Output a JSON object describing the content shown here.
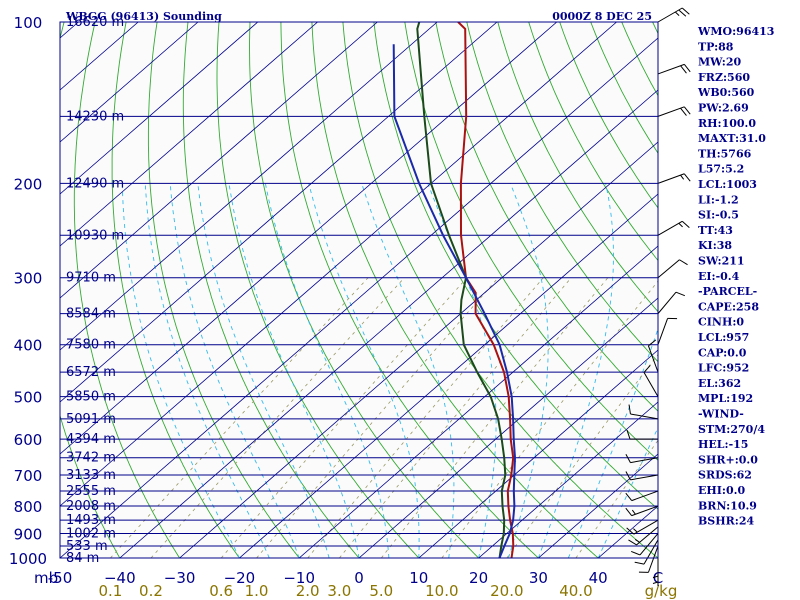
{
  "header": {
    "title": "WBGG (96413) Sounding",
    "datetime": "0000Z  8 DEC 25"
  },
  "colors": {
    "background": "#ffffff",
    "plot_bg": "#fbfbfb",
    "isobar": "#00008b",
    "isotherm": "#00008b",
    "dry_adiabat": "#33aa33",
    "moist_adiabat": "#33bbee",
    "mixing_ratio": "#999966",
    "temperature": "#aa1111",
    "dewpoint": "#1c4a1c",
    "parcel": "#1a2aa8",
    "wind_barb": "#000000",
    "stats_text": "#00008b"
  },
  "stats": [
    "WMO:96413",
    "TP:88",
    "MW:20",
    "FRZ:560",
    "WB0:560",
    "PW:2.69",
    "RH:100.0",
    "MAXT:31.0",
    "TH:5766",
    "L57:5.2",
    "LCL:1003",
    "LI:-1.2",
    "SI:-0.5",
    "TT:43",
    "KI:38",
    "SW:211",
    "EI:-0.4",
    "-PARCEL-",
    "CAPE:258",
    "CINH:0",
    "LCL:957",
    "CAP:0.0",
    "LFC:952",
    "EL:362",
    "MPL:192",
    "-WIND-",
    "STM:270/4",
    "HEL:-15",
    "SHR+:0.0",
    "SRDS:62",
    "EHI:0.0",
    "BRN:10.9",
    "BSHR:24"
  ],
  "chart_data": {
    "type": "line",
    "title": "WBGG (96413) Sounding",
    "subtitle": "0000Z  8 DEC 25",
    "xlabel": "C",
    "ylabel": "mb",
    "pressure_axis": {
      "scale": "log",
      "ylim": [
        1000,
        100
      ],
      "reversed": true
    },
    "x_temperature_range": [
      -50,
      50
    ],
    "pressure_ticks": [
      {
        "p": 100,
        "label": "100"
      },
      {
        "p": 200,
        "label": "200"
      },
      {
        "p": 300,
        "label": "300"
      },
      {
        "p": 400,
        "label": "400"
      },
      {
        "p": 500,
        "label": "500"
      },
      {
        "p": 600,
        "label": "600"
      },
      {
        "p": 700,
        "label": "700"
      },
      {
        "p": 800,
        "label": "800"
      },
      {
        "p": 900,
        "label": "900"
      },
      {
        "p": 1000,
        "label": "1000"
      }
    ],
    "height_labels": [
      {
        "p": 100,
        "label": "16620 m"
      },
      {
        "p": 150,
        "label": "14230 m"
      },
      {
        "p": 200,
        "label": "12490 m"
      },
      {
        "p": 250,
        "label": "10930 m"
      },
      {
        "p": 300,
        "label": "9710 m"
      },
      {
        "p": 350,
        "label": "8584 m"
      },
      {
        "p": 400,
        "label": "7580 m"
      },
      {
        "p": 450,
        "label": "6572 m"
      },
      {
        "p": 500,
        "label": "5850 m"
      },
      {
        "p": 550,
        "label": "5091 m"
      },
      {
        "p": 600,
        "label": "4394 m"
      },
      {
        "p": 650,
        "label": "3742 m"
      },
      {
        "p": 700,
        "label": "3133 m"
      },
      {
        "p": 750,
        "label": "2555 m"
      },
      {
        "p": 800,
        "label": "2008 m"
      },
      {
        "p": 850,
        "label": "1493 m"
      },
      {
        "p": 900,
        "label": "1002 m"
      },
      {
        "p": 950,
        "label": "533 m"
      },
      {
        "p": 1000,
        "label": "84 m"
      }
    ],
    "temperature_ticks": [
      -50,
      -40,
      -30,
      -20,
      -10,
      0,
      10,
      20,
      30,
      40,
      50
    ],
    "temperature_tick_labels": [
      "-50",
      "−40",
      "−30",
      "−20",
      "−10",
      "0",
      "10",
      "20",
      "30",
      "40"
    ],
    "temperature_unit_label": "C",
    "pressure_unit_label": "mb",
    "mixing_ratio_ticks": [
      {
        "w": 0.1,
        "label": "0.1"
      },
      {
        "w": 0.2,
        "label": "0.2"
      },
      {
        "w": 0.6,
        "label": "0.6"
      },
      {
        "w": 1.0,
        "label": "1.0"
      },
      {
        "w": 2.0,
        "label": "2.0"
      },
      {
        "w": 3.0,
        "label": "3.0"
      },
      {
        "w": 5.0,
        "label": "5.0"
      },
      {
        "w": 10.0,
        "label": "10.0"
      },
      {
        "w": 20.0,
        "label": "20.0"
      },
      {
        "w": 40.0,
        "label": "40.0"
      }
    ],
    "mixing_ratio_unit": "g/kg",
    "series": [
      {
        "name": "",
        "kind": "temperature",
        "p": [
          1000,
          950,
          900,
          850,
          800,
          750,
          700,
          650,
          600,
          550,
          500,
          450,
          400,
          350,
          320,
          300,
          250,
          200,
          150,
          103,
          100
        ],
        "t": [
          25.5,
          23.5,
          21.0,
          18.0,
          15.0,
          12.0,
          9.5,
          6.5,
          2.5,
          -1.5,
          -6.0,
          -11.5,
          -18.5,
          -27.5,
          -31.5,
          -36.0,
          -45.0,
          -55.0,
          -67.0,
          -84.0,
          -86.5
        ]
      },
      {
        "name": "",
        "kind": "dewpoint",
        "p": [
          1000,
          950,
          900,
          850,
          800,
          750,
          700,
          650,
          600,
          550,
          500,
          450,
          400,
          350,
          330,
          300,
          250,
          200,
          150,
          103,
          100
        ],
        "t": [
          23.5,
          21.5,
          19.5,
          17.0,
          14.0,
          11.0,
          8.5,
          5.0,
          1.0,
          -3.5,
          -9.0,
          -16.0,
          -23.5,
          -30.0,
          -32.5,
          -36.0,
          -47.0,
          -60.0,
          -74.0,
          -92.0,
          -93.0
        ]
      },
      {
        "name": "",
        "kind": "parcel",
        "p": [
          1000,
          950,
          900,
          850,
          800,
          750,
          700,
          650,
          600,
          550,
          500,
          450,
          400,
          350,
          300,
          250,
          200,
          150,
          110
        ],
        "t": [
          23.5,
          22.0,
          20.5,
          18.5,
          16.0,
          13.0,
          10.0,
          6.8,
          3.0,
          -1.0,
          -5.5,
          -11.0,
          -17.5,
          -26.0,
          -36.0,
          -48.0,
          -62.0,
          -79.0,
          -93.0
        ]
      }
    ],
    "winds": [
      {
        "p": 1000,
        "dir": 180,
        "spd": 5
      },
      {
        "p": 975,
        "dir": 180,
        "spd": 5
      },
      {
        "p": 950,
        "dir": 200,
        "spd": 10
      },
      {
        "p": 925,
        "dir": 210,
        "spd": 10
      },
      {
        "p": 900,
        "dir": 220,
        "spd": 10
      },
      {
        "p": 875,
        "dir": 230,
        "spd": 15
      },
      {
        "p": 850,
        "dir": 240,
        "spd": 15
      },
      {
        "p": 800,
        "dir": 250,
        "spd": 15
      },
      {
        "p": 750,
        "dir": 250,
        "spd": 10
      },
      {
        "p": 700,
        "dir": 260,
        "spd": 10
      },
      {
        "p": 650,
        "dir": 260,
        "spd": 10
      },
      {
        "p": 600,
        "dir": 270,
        "spd": 10
      },
      {
        "p": 550,
        "dir": 280,
        "spd": 10
      },
      {
        "p": 500,
        "dir": 330,
        "spd": 10
      },
      {
        "p": 450,
        "dir": 340,
        "spd": 10
      },
      {
        "p": 400,
        "dir": 20,
        "spd": 10
      },
      {
        "p": 350,
        "dir": 40,
        "spd": 10
      },
      {
        "p": 300,
        "dir": 50,
        "spd": 10
      },
      {
        "p": 250,
        "dir": 60,
        "spd": 15
      },
      {
        "p": 200,
        "dir": 70,
        "spd": 15
      },
      {
        "p": 150,
        "dir": 70,
        "spd": 20
      },
      {
        "p": 125,
        "dir": 70,
        "spd": 20
      },
      {
        "p": 100,
        "dir": 60,
        "spd": 25
      }
    ],
    "grid": true,
    "legend": "none"
  }
}
